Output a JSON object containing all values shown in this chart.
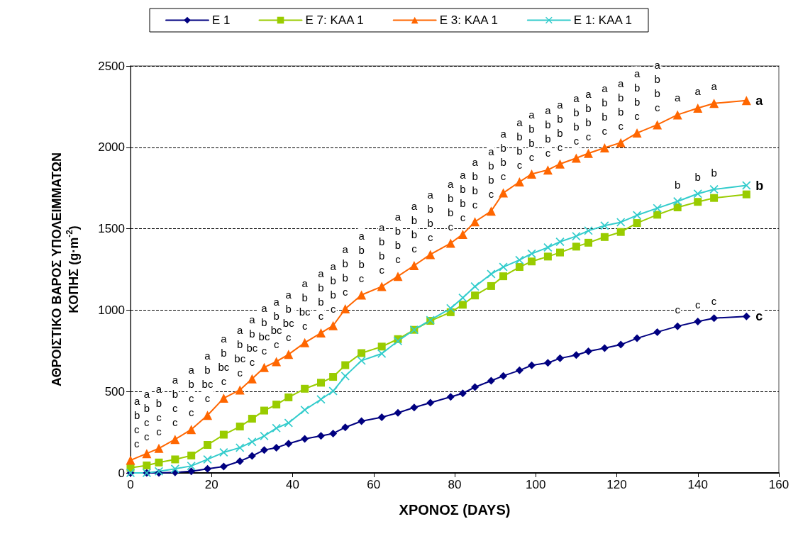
{
  "chart_data": {
    "type": "line",
    "xlabel": "ΧΡΟΝΟΣ (DAYS)",
    "ylabel": "ΑΘΡΟΙΣΤΙΚΟ ΒΑΡΟΣ ΥΠΟΛΕΙΜΜΑΤΩΝ\nΚΟΠΗΣ (g·m$^{-2}$)",
    "x": [
      0,
      4,
      7,
      11,
      15,
      19,
      23,
      27,
      30,
      33,
      36,
      39,
      43,
      47,
      50,
      53,
      57,
      62,
      66,
      70,
      74,
      79,
      82,
      85,
      89,
      92,
      96,
      99,
      103,
      106,
      110,
      113,
      117,
      121,
      125,
      130,
      135,
      140,
      144,
      152
    ],
    "series": [
      {
        "name": "E 1",
        "color": "#000080",
        "marker": "diamond",
        "values": [
          0,
          0,
          0,
          3,
          10,
          25,
          39,
          72,
          104,
          141,
          155,
          180,
          209,
          228,
          242,
          280,
          318,
          342,
          369,
          402,
          431,
          467,
          489,
          527,
          566,
          596,
          630,
          661,
          676,
          704,
          724,
          747,
          767,
          788,
          827,
          865,
          901,
          930,
          951,
          961
        ]
      },
      {
        "name": "E 7: KAA 1",
        "color": "#99cc00",
        "marker": "square",
        "values": [
          32,
          46,
          64,
          83,
          107,
          172,
          235,
          285,
          333,
          383,
          420,
          464,
          517,
          554,
          590,
          662,
          736,
          776,
          822,
          879,
          934,
          987,
          1033,
          1090,
          1148,
          1208,
          1265,
          1299,
          1329,
          1354,
          1390,
          1414,
          1449,
          1480,
          1535,
          1586,
          1631,
          1665,
          1689,
          1711
        ]
      },
      {
        "name": "E 3: KAA 1",
        "color": "#ff6600",
        "marker": "triangle",
        "values": [
          78,
          119,
          151,
          206,
          267,
          354,
          459,
          510,
          578,
          648,
          684,
          728,
          800,
          860,
          905,
          1008,
          1093,
          1145,
          1208,
          1274,
          1342,
          1411,
          1466,
          1543,
          1608,
          1720,
          1788,
          1836,
          1861,
          1898,
          1934,
          1963,
          1997,
          2029,
          2088,
          2139,
          2200,
          2241,
          2270,
          2288
        ]
      },
      {
        "name": "E 1: KAA 1",
        "color": "#33cccc",
        "marker": "cross",
        "values": [
          0,
          0,
          10,
          25,
          43,
          83,
          126,
          155,
          191,
          227,
          275,
          307,
          387,
          452,
          503,
          595,
          690,
          733,
          810,
          879,
          939,
          1011,
          1076,
          1145,
          1222,
          1265,
          1308,
          1347,
          1385,
          1420,
          1454,
          1488,
          1519,
          1540,
          1583,
          1626,
          1668,
          1715,
          1742,
          1766
        ]
      }
    ],
    "xlim": [
      0,
      160
    ],
    "xticks": [
      0,
      20,
      40,
      60,
      80,
      100,
      120,
      140,
      160
    ],
    "ylim": [
      0,
      2500
    ],
    "yticks": [
      0,
      500,
      1000,
      1500,
      2000,
      2500
    ],
    "grid": "y",
    "legend": "top",
    "line_style": "solid",
    "annotations": [
      {
        "text": "a\nb\nc\nc",
        "x": 0,
        "y": 78
      },
      {
        "text": "a\nb\nc\nc",
        "x": 4,
        "y": 119
      },
      {
        "text": "a\nb\nc\nc",
        "x": 7,
        "y": 151
      },
      {
        "text": "a\nb\nc\nc",
        "x": 11,
        "y": 206
      },
      {
        "text": "a\nb\nc\nc",
        "x": 15,
        "y": 267
      },
      {
        "text": "a\nb\nbc\nc",
        "x": 19,
        "y": 354
      },
      {
        "text": "a\nb\nbc\nc",
        "x": 23,
        "y": 459
      },
      {
        "text": "a\nb\nbc\nc",
        "x": 27,
        "y": 510
      },
      {
        "text": "a\nb\nbc\nc",
        "x": 30,
        "y": 578
      },
      {
        "text": "a\nb\nbc\nc",
        "x": 33,
        "y": 648
      },
      {
        "text": "a\nb\nbc\nc",
        "x": 36,
        "y": 684
      },
      {
        "text": "a\nb\nbc\nc",
        "x": 39,
        "y": 728
      },
      {
        "text": "a\nb\nbc\nc",
        "x": 43,
        "y": 800
      },
      {
        "text": "a\nb\nb\nc",
        "x": 47,
        "y": 860
      },
      {
        "text": "a\nb\nb\nc",
        "x": 50,
        "y": 905
      },
      {
        "text": "a\nb\nb\nc",
        "x": 53,
        "y": 1008
      },
      {
        "text": "a\nb\nb\nc",
        "x": 57,
        "y": 1093
      },
      {
        "text": "a\nb\nb\nc",
        "x": 62,
        "y": 1145
      },
      {
        "text": "a\nb\nb\nc",
        "x": 66,
        "y": 1208
      },
      {
        "text": "a\nb\nb\nc",
        "x": 70,
        "y": 1274
      },
      {
        "text": "a\nb\nb\nc",
        "x": 74,
        "y": 1342
      },
      {
        "text": "a\nb\nb\nc",
        "x": 79,
        "y": 1411
      },
      {
        "text": "a\nb\nb\nc",
        "x": 82,
        "y": 1466
      },
      {
        "text": "a\nb\nb\nc",
        "x": 85,
        "y": 1543
      },
      {
        "text": "a\nb\nb\nc",
        "x": 89,
        "y": 1608
      },
      {
        "text": "a\nb\nb\nc",
        "x": 92,
        "y": 1720
      },
      {
        "text": "a\nb\nb\nc",
        "x": 96,
        "y": 1788
      },
      {
        "text": "a\nb\nb\nc",
        "x": 99,
        "y": 1836
      },
      {
        "text": "a\nb\nb\nc",
        "x": 103,
        "y": 1861
      },
      {
        "text": "a\nb\nb\nc",
        "x": 106,
        "y": 1898
      },
      {
        "text": "a\nb\nb\nc",
        "x": 110,
        "y": 1934
      },
      {
        "text": "a\nb\nb\nc",
        "x": 113,
        "y": 1963
      },
      {
        "text": "a\nb\nb\nc",
        "x": 117,
        "y": 1997
      },
      {
        "text": "a\nb\nb\nc",
        "x": 121,
        "y": 2029
      },
      {
        "text": "a\nb\nb\nc",
        "x": 125,
        "y": 2088
      },
      {
        "text": "a\nb\nb\nc",
        "x": 130,
        "y": 2139
      },
      {
        "text": "a",
        "x": 135,
        "y": 2200
      },
      {
        "text": "a",
        "x": 140,
        "y": 2241
      },
      {
        "text": "a",
        "x": 144,
        "y": 2270
      },
      {
        "text": "b",
        "x": 135,
        "y": 1668
      },
      {
        "text": "b",
        "x": 140,
        "y": 1715
      },
      {
        "text": "b",
        "x": 144,
        "y": 1742
      },
      {
        "text": "c",
        "x": 135,
        "y": 901
      },
      {
        "text": "c",
        "x": 140,
        "y": 930
      },
      {
        "text": "c",
        "x": 144,
        "y": 951
      },
      {
        "text": "a",
        "x": 152,
        "y": 2288
      },
      {
        "text": "b",
        "x": 152,
        "y": 1766
      },
      {
        "text": "c",
        "x": 152,
        "y": 961
      }
    ]
  }
}
